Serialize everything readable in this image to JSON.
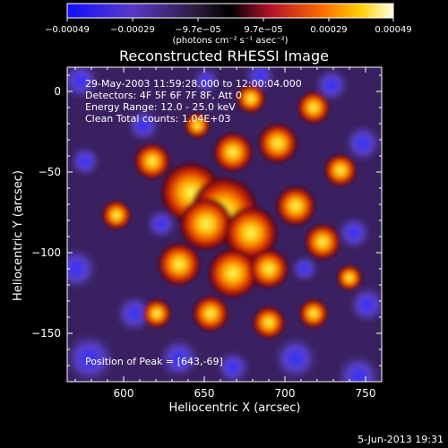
{
  "colorbar": {
    "tick_labels": [
      "−0.00049",
      "−0.00029",
      "−9.7e−05",
      "9.7e−05",
      "0.00029",
      "0.00049"
    ],
    "unit_label": "(photons cm⁻² s⁻¹ asec⁻²)",
    "range": [
      -0.00049,
      0.00049
    ]
  },
  "chart_data": {
    "type": "heatmap",
    "title": "Reconstructed RHESSI Image",
    "xlabel": "Heliocentric X (arcsec)",
    "ylabel": "Heliocentric Y (arcsec)",
    "xlim": [
      565,
      760
    ],
    "ylim": [
      -180,
      15
    ],
    "x_ticks": [
      600,
      650,
      700,
      750
    ],
    "y_ticks": [
      0,
      -50,
      -100,
      -150
    ],
    "annotations": [
      "29-May-2003 11:59:28.000 to 12:00:04.000",
      "Detectors: 4F 5F 6F 7F 8F, Att 0",
      "Energy Range: 12.0 - 25.0 keV",
      "Clean     Total counts: 1.04E+03"
    ],
    "peak_label": "Position of Peak = [643,-69]",
    "peak_position": [
      643,
      -69
    ]
  },
  "footer": {
    "timestamp": "5-Jun-2013 19:31"
  }
}
